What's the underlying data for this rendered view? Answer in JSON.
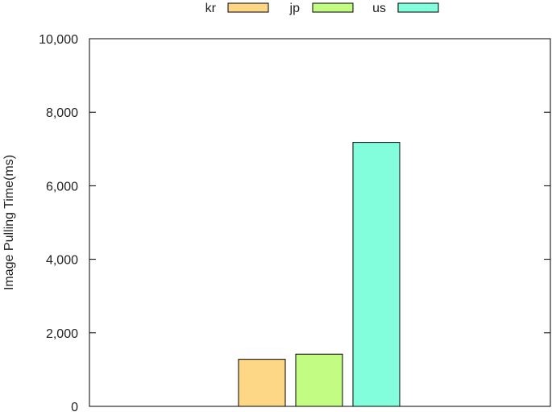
{
  "chart_data": {
    "type": "bar",
    "title": "",
    "xlabel": "",
    "ylabel": "Image Pulling Time(ms)",
    "ylim": [
      0,
      10000
    ],
    "yticks": [
      0,
      2000,
      4000,
      6000,
      8000,
      10000
    ],
    "ytick_labels": [
      "0",
      "2,000",
      "4,000",
      "6,000",
      "8,000",
      "10,000"
    ],
    "grid": false,
    "legend_position": "top-center",
    "series": [
      {
        "name": "kr",
        "values": [
          1280
        ],
        "color": "#fdd686"
      },
      {
        "name": "jp",
        "values": [
          1420
        ],
        "color": "#c3fc82"
      },
      {
        "name": "us",
        "values": [
          7180
        ],
        "color": "#82fedc"
      }
    ]
  }
}
